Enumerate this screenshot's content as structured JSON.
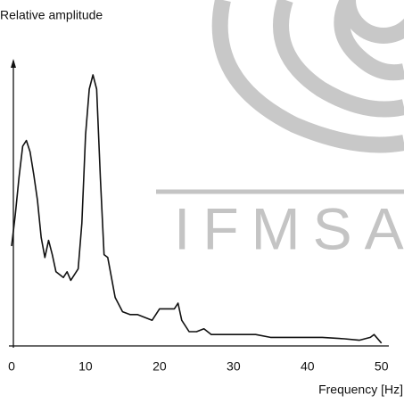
{
  "chart_data": {
    "type": "line",
    "y_label": "Relative amplitude",
    "x_label": "Frequency [Hz]",
    "watermark": "IFMSA",
    "color": "#111111",
    "x": [
      0,
      0.5,
      1,
      1.5,
      2,
      2.5,
      3,
      3.5,
      4,
      4.5,
      5,
      5.5,
      6,
      7,
      7.5,
      8,
      9,
      9.5,
      10,
      10.5,
      11,
      11.5,
      12,
      12.5,
      13,
      13.5,
      14,
      15,
      16,
      17,
      18,
      19,
      20,
      21,
      22,
      22.5,
      23,
      24,
      25,
      26,
      27,
      30,
      33,
      35,
      38,
      40,
      42,
      45,
      47,
      48.5,
      49,
      50
    ],
    "values": [
      35,
      46,
      59,
      70,
      72,
      68,
      60,
      51,
      38,
      31,
      37,
      32,
      26,
      24,
      26,
      23,
      27,
      43,
      74,
      90,
      95,
      90,
      59,
      32,
      31,
      24,
      17,
      12,
      11,
      11,
      10,
      9,
      13,
      13,
      13,
      15,
      9,
      5,
      5,
      6,
      4,
      4,
      4,
      3,
      3,
      3,
      3,
      2.5,
      2,
      3,
      4,
      1
    ],
    "xlim": [
      0,
      51
    ],
    "ylim": [
      0,
      100
    ],
    "xticks": [
      0,
      10,
      20,
      30,
      40,
      50
    ],
    "grid": false
  }
}
